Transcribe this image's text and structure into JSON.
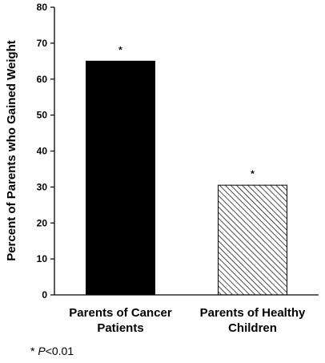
{
  "chart_data": {
    "type": "bar",
    "categories": [
      [
        "Parents of Cancer",
        "Patients"
      ],
      [
        "Parents of Healthy",
        "Children"
      ]
    ],
    "values": [
      65,
      30.5
    ],
    "bar_styles": [
      "solid-black",
      "diagonal-hatch"
    ],
    "annotations": [
      "*",
      "*"
    ],
    "title": "",
    "xlabel": "",
    "ylabel": "Percent of Parents who Gained Weight",
    "ylim": [
      0,
      80
    ],
    "yticks": [
      0,
      10,
      20,
      30,
      40,
      50,
      60,
      70,
      80
    ],
    "grid": false,
    "legend": "none"
  },
  "footnote": {
    "symbol": "* ",
    "italic": "P",
    "rest": "<0.01"
  },
  "colors": {
    "bar_solid": "#000000",
    "hatch": "#000000",
    "background": "#ffffff"
  }
}
